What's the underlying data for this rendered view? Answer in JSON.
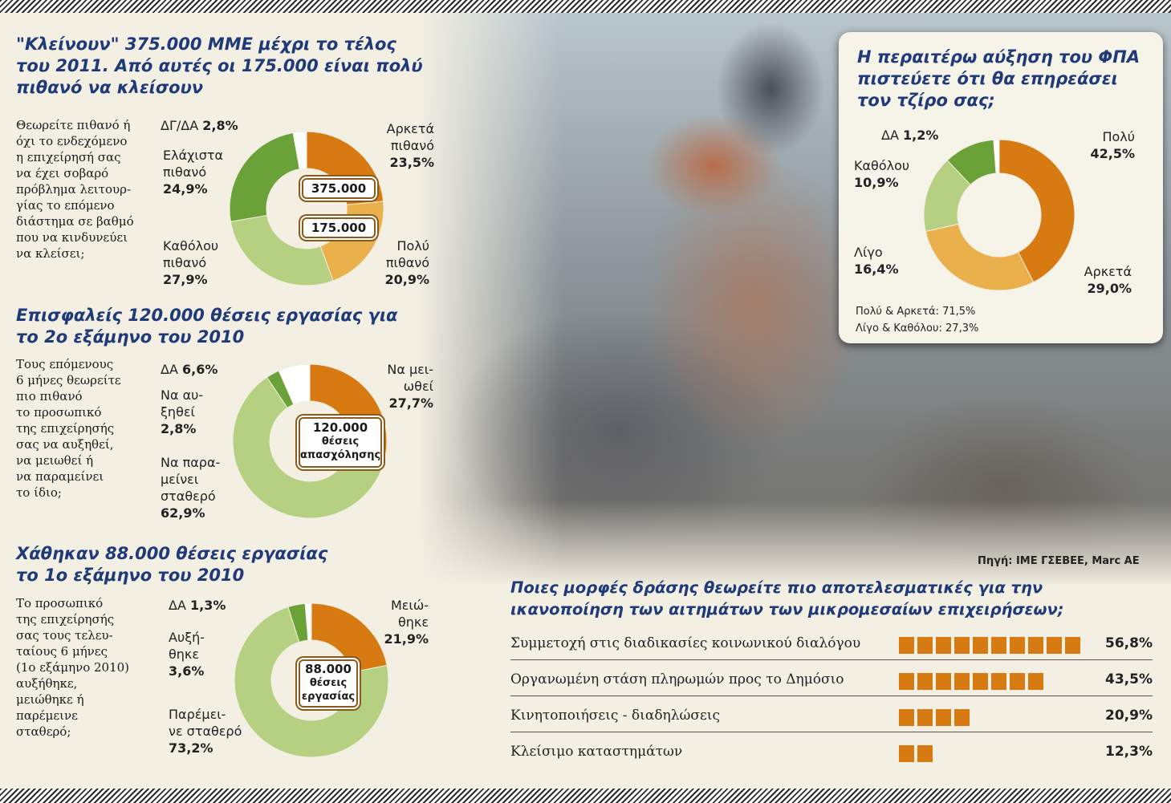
{
  "colors": {
    "title": "#1e3a78",
    "orange": "#d87a12",
    "light_orange": "#eab04c",
    "dark_green": "#6aa238",
    "light_green": "#b5d080",
    "white_slice": "#ffffff"
  },
  "source": "Πηγή: ΙΜΕ ΓΣΕΒΕΕ, Marc AE",
  "section1": {
    "title_lines": [
      "\"Κλείνουν\" 375.000 ΜΜΕ μέχρι το τέλος",
      "του 2011. Από αυτές οι 175.000 είναι πολύ",
      "πιθανό να κλείσουν"
    ],
    "question_lines": [
      "Θεωρείτε πιθανό ή",
      "όχι το ενδεχόμενο",
      "η επιχείρησή σας",
      "να έχει σοβαρό",
      "πρόβλημα λειτουρ-",
      "γίας το επόμενο",
      "διάστημα σε βαθμό",
      "που να κινδυνεύει",
      "να κλείσει;"
    ],
    "center_top": "375.000",
    "center_bottom": "175.000"
  },
  "section2": {
    "title_lines": [
      "Επισφαλείς 120.000 θέσεις εργασίας για",
      "το 2ο εξάμηνο του 2010"
    ],
    "question_lines": [
      "Τους επόμενους",
      "6 μήνες θεωρείτε",
      "πιο πιθανό",
      "το προσωπικό",
      "της επιχείρησής",
      "σας να αυξηθεί,",
      "να μειωθεί ή",
      "να παραμείνει",
      "το ίδιο;"
    ],
    "center_lines": [
      "120.000",
      "θέσεις",
      "απασχόλησης"
    ]
  },
  "section3": {
    "title_lines": [
      "Χάθηκαν 88.000 θέσεις εργασίας",
      "το 1ο εξάμηνο του 2010"
    ],
    "question_lines": [
      "Το προσωπικό",
      "της επιχείρησής",
      "σας τους τελευ-",
      "ταίους 6 μήνες",
      "(1ο εξάμηνο 2010)",
      "αυξήθηκε,",
      "μειώθηκε ή",
      "παρέμεινε",
      "σταθερό;"
    ],
    "center_lines": [
      "88.000",
      "θέσεις",
      "εργασίας"
    ]
  },
  "vat_panel": {
    "title_lines": [
      "Η περαιτέρω αύξηση του ΦΠΑ",
      "πιστεύετε ότι θα επηρεάσει",
      "τον τζίρο σας;"
    ],
    "summary_lines": [
      "Πολύ & Αρκετά: 71,5%",
      "Λίγο & Καθόλου: 27,3%"
    ]
  },
  "bars_title_lines": [
    "Ποιες μορφές δράσης θεωρείτε πιο αποτελεσματικές για την",
    "ικανοποίηση των αιτημάτων των μικρομεσαίων επιχειρήσεων;"
  ],
  "chart_data": [
    {
      "type": "pie",
      "id": "closure",
      "series": [
        {
          "name": "Αρκετά πιθανό",
          "value": 23.5,
          "label": "23,5%",
          "color": "#d87a12"
        },
        {
          "name": "Πολύ πιθανό",
          "value": 20.9,
          "label": "20,9%",
          "color": "#eab04c"
        },
        {
          "name": "Καθόλου πιθανό",
          "value": 27.9,
          "label": "27,9%",
          "color": "#b5d080"
        },
        {
          "name": "Ελάχιστα πιθανό",
          "value": 24.9,
          "label": "24,9%",
          "color": "#6aa238"
        },
        {
          "name": "ΔΓ/ΔΑ",
          "value": 2.8,
          "label": "2,8%",
          "color": "#ffffff"
        }
      ]
    },
    {
      "type": "pie",
      "id": "staff_next",
      "series": [
        {
          "name": "Να μειωθεί",
          "value": 27.7,
          "label": "27,7%",
          "color": "#d87a12"
        },
        {
          "name": "Να παραμείνει σταθερό",
          "value": 62.9,
          "label": "62,9%",
          "color": "#b5d080"
        },
        {
          "name": "Να αυξηθεί",
          "value": 2.8,
          "label": "2,8%",
          "color": "#6aa238"
        },
        {
          "name": "ΔΑ",
          "value": 6.6,
          "label": "6,6%",
          "color": "#ffffff"
        }
      ]
    },
    {
      "type": "pie",
      "id": "staff_past",
      "series": [
        {
          "name": "Μειώθηκε",
          "value": 21.9,
          "label": "21,9%",
          "color": "#d87a12"
        },
        {
          "name": "Παρέμεινε σταθερό",
          "value": 73.2,
          "label": "73,2%",
          "color": "#b5d080"
        },
        {
          "name": "Αυξήθηκε",
          "value": 3.6,
          "label": "3,6%",
          "color": "#6aa238"
        },
        {
          "name": "ΔΑ",
          "value": 1.3,
          "label": "1,3%",
          "color": "#ffffff"
        }
      ]
    },
    {
      "type": "pie",
      "id": "vat",
      "series": [
        {
          "name": "Πολύ",
          "value": 42.5,
          "label": "42,5%",
          "color": "#d87a12"
        },
        {
          "name": "Αρκετά",
          "value": 29.0,
          "label": "29,0%",
          "color": "#eab04c"
        },
        {
          "name": "Λίγο",
          "value": 16.4,
          "label": "16,4%",
          "color": "#b5d080"
        },
        {
          "name": "Καθόλου",
          "value": 10.9,
          "label": "10,9%",
          "color": "#6aa238"
        },
        {
          "name": "ΔΑ",
          "value": 1.2,
          "label": "1,2%",
          "color": "#ffffff"
        }
      ]
    },
    {
      "type": "bar",
      "id": "actions",
      "categories": [
        "Συμμετοχή στις διαδικασίες κοινωνικού διαλόγου",
        "Οργανωμένη στάση πληρωμών προς το Δημόσιο",
        "Κινητοποιήσεις - διαδηλώσεις",
        "Κλείσιμο καταστημάτων"
      ],
      "values": [
        56.8,
        43.5,
        20.9,
        12.3
      ],
      "labels": [
        "56,8%",
        "43,5%",
        "20,9%",
        "12,3%"
      ]
    }
  ]
}
